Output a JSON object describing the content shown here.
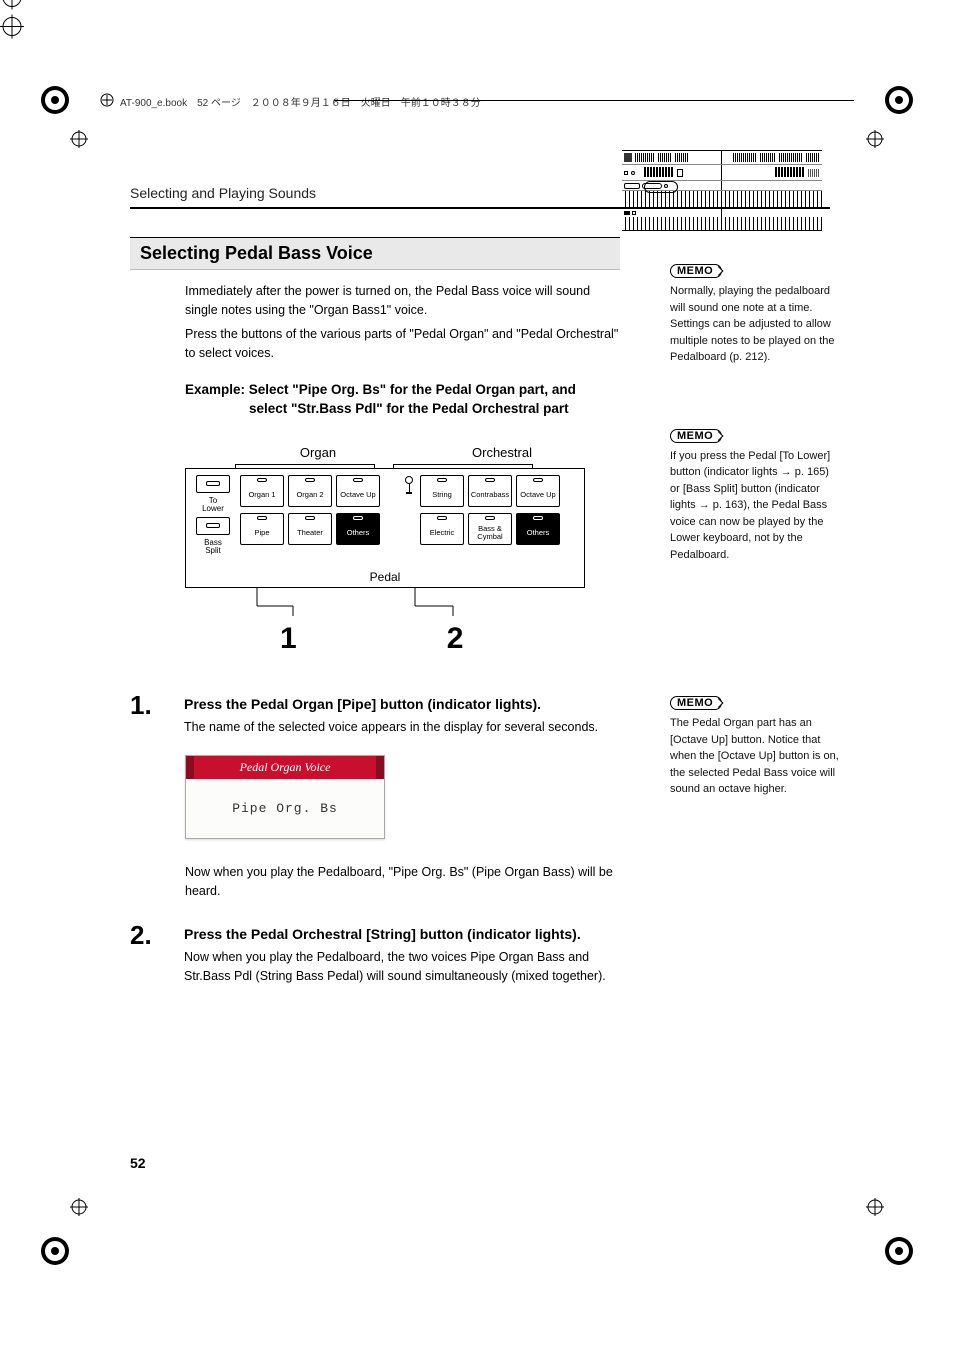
{
  "header": {
    "file_info": "AT-900_e.book　52 ページ　２００８年９月１６日　火曜日　午前１０時３８分"
  },
  "running_head": "Selecting and Playing Sounds",
  "section_title": "Selecting Pedal Bass Voice",
  "intro": {
    "p1": "Immediately after the power is turned on, the Pedal Bass voice will sound single notes using the \"Organ Bass1\" voice.",
    "p2": "Press the buttons of the various parts of \"Pedal Organ\" and \"Pedal Orchestral\" to select voices."
  },
  "example": {
    "line1": "Example: Select \"Pipe Org. Bs\" for the Pedal Organ part, and",
    "line2": "select \"Str.Bass Pdl\" for the Pedal Orchestral part"
  },
  "panel": {
    "group1": "Organ",
    "group2": "Orchestral",
    "left": {
      "to_lower": "To\nLower",
      "bass_split": "Bass\nSplit"
    },
    "organ_row1": [
      "Organ 1",
      "Organ 2",
      "Octave Up"
    ],
    "organ_row2": [
      "Pipe",
      "Theater",
      "Others"
    ],
    "orch_row1": [
      "String",
      "Contrabass",
      "Octave Up"
    ],
    "orch_row2": [
      "Electric",
      "Bass & Cymbal",
      "Others"
    ],
    "footer": "Pedal",
    "callout1": "1",
    "callout2": "2"
  },
  "steps": {
    "s1": {
      "num": "1.",
      "head": "Press the Pedal Organ [Pipe] button (indicator lights).",
      "body1": "The name of the selected voice appears in the display for several seconds.",
      "body2": "Now when you play the Pedalboard, \"Pipe Org. Bs\" (Pipe Organ Bass) will be heard."
    },
    "s2": {
      "num": "2.",
      "head": "Press the Pedal Orchestral [String] button (indicator lights).",
      "body": "Now when you play the Pedalboard, the two voices Pipe Organ Bass and Str.Bass Pdl (String Bass Pedal) will sound simultaneously (mixed together)."
    }
  },
  "display": {
    "title": "Pedal Organ Voice",
    "value": "Pipe Org. Bs"
  },
  "memos": {
    "label": "MEMO",
    "m1": "Normally, playing the pedalboard will sound one note at a time. Settings can be adjusted to allow multiple notes to be played on the Pedalboard (p. 212).",
    "m2": "If you press the Pedal [To Lower] button (indicator lights → p. 165) or [Bass Split] button (indicator lights → p. 163), the Pedal Bass voice can now be played by the Lower keyboard, not by the Pedalboard.",
    "m3": "The Pedal Organ part has an [Octave Up] button. Notice that when the [Octave Up] button is on, the selected Pedal Bass voice will sound an octave higher."
  },
  "page_number": "52",
  "colors": {
    "accent_red": "#c8102e",
    "accent_red_dark": "#8a0c20",
    "section_bg": "#e9e9e9"
  }
}
